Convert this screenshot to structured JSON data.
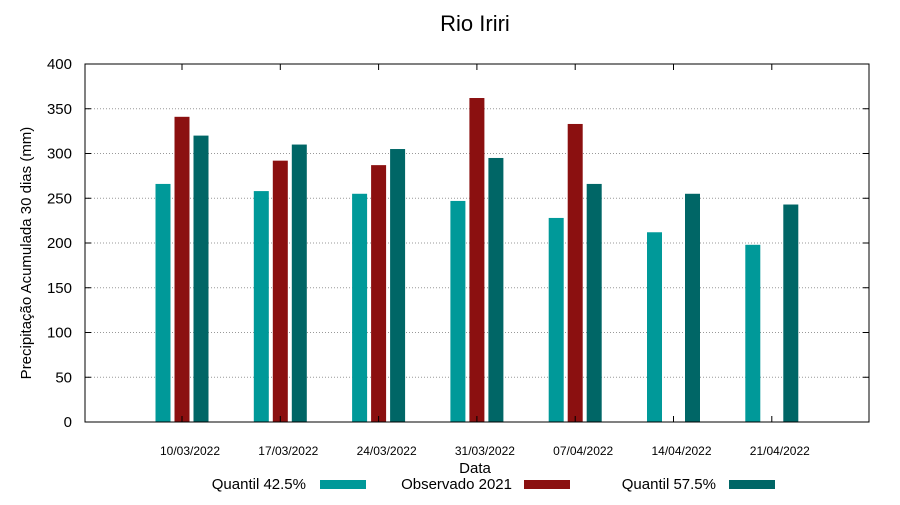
{
  "chart_data": {
    "type": "bar",
    "title": "Rio Iriri",
    "xlabel": "Data",
    "ylabel": "Precipitação Acumulada 30 dias (mm)",
    "ylim": [
      0,
      400
    ],
    "yticks": [
      0,
      50,
      100,
      150,
      200,
      250,
      300,
      350,
      400
    ],
    "grid": true,
    "legend_position": "bottom",
    "categories": [
      "10/03/2022",
      "17/03/2022",
      "24/03/2022",
      "31/03/2022",
      "07/04/2022",
      "14/04/2022",
      "21/04/2022"
    ],
    "series": [
      {
        "name": "Quantil 42.5%",
        "color": "#009999",
        "values": [
          266,
          258,
          255,
          247,
          228,
          212,
          198
        ]
      },
      {
        "name": "Observado 2021",
        "color": "#8b1010",
        "values": [
          341,
          292,
          287,
          362,
          333,
          null,
          null
        ]
      },
      {
        "name": "Quantil 57.5%",
        "color": "#006666",
        "values": [
          320,
          310,
          305,
          295,
          266,
          255,
          243
        ]
      }
    ]
  }
}
